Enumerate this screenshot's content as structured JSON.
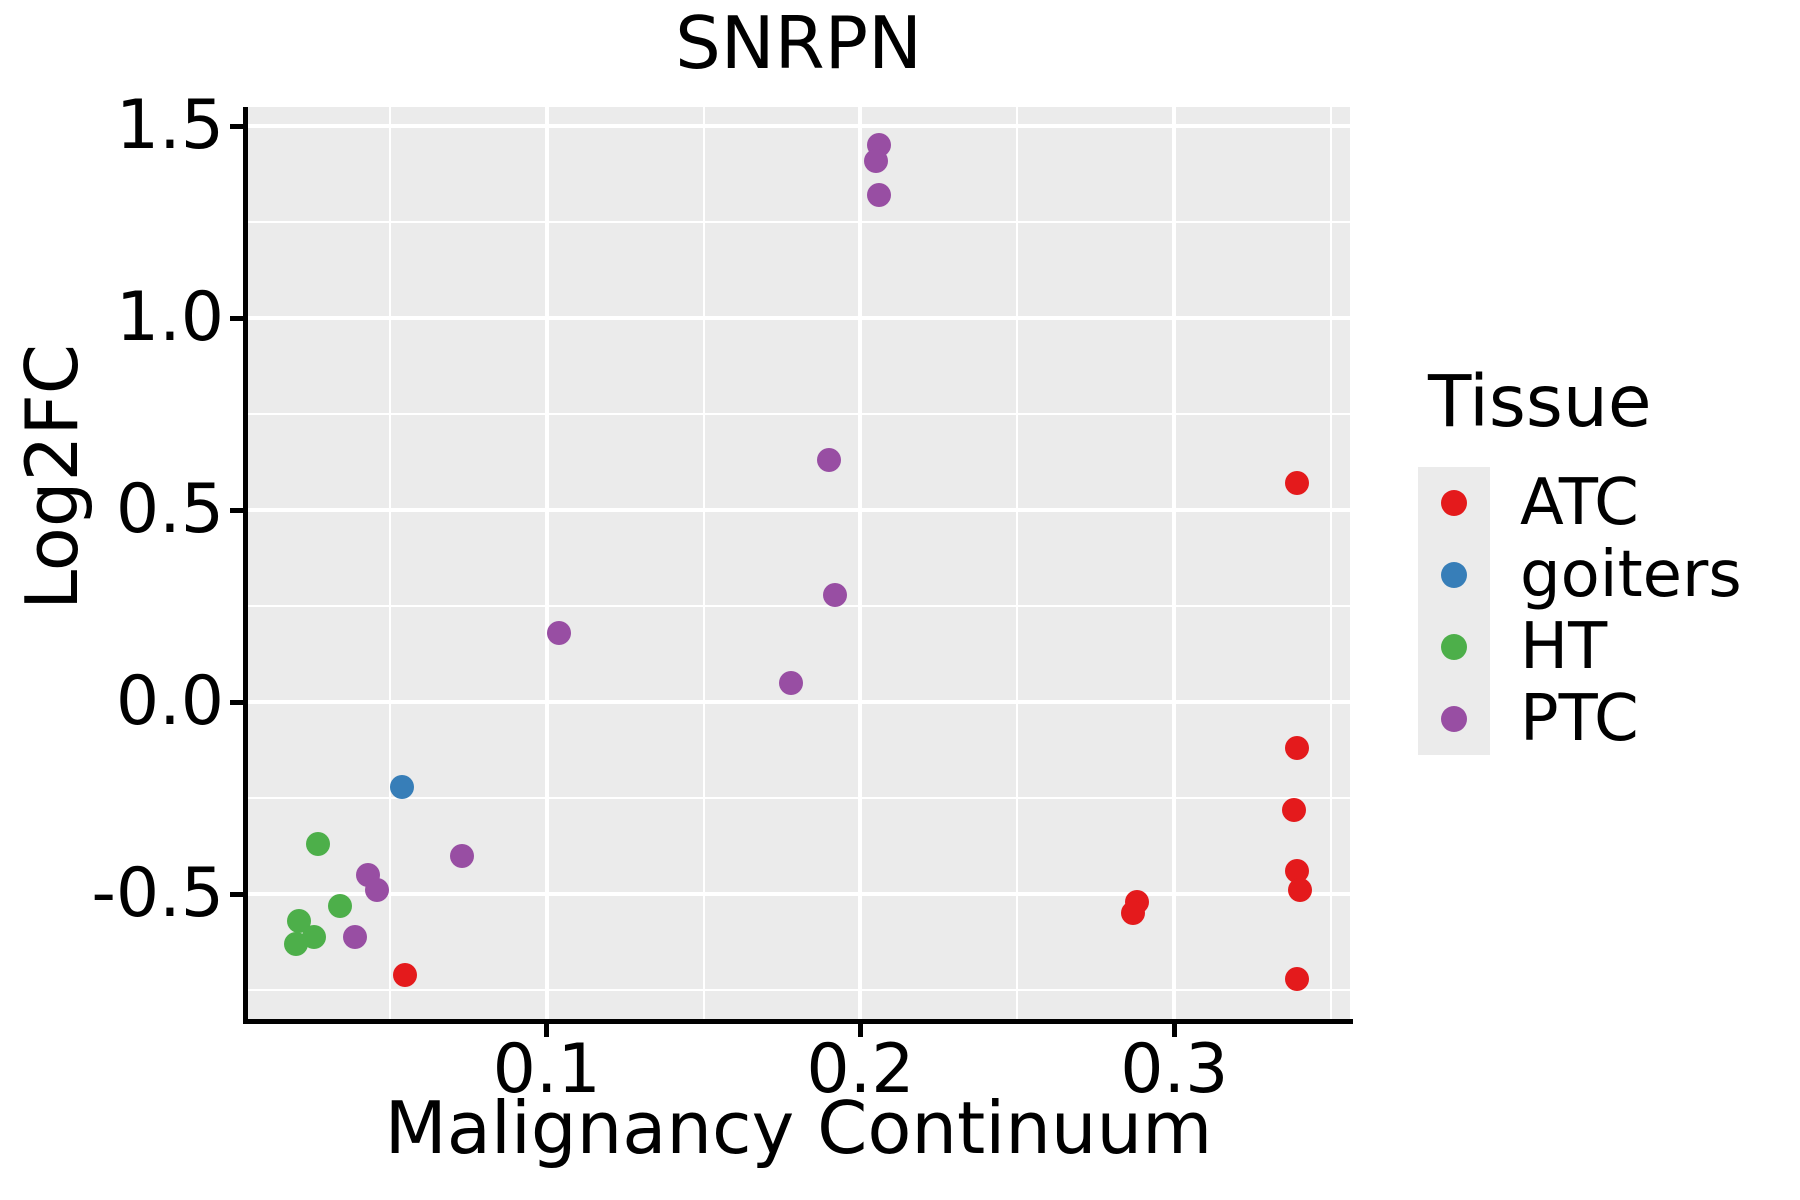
{
  "chart_data": {
    "type": "scatter",
    "title": "SNRPN",
    "xlabel": "Malignancy Continuum",
    "ylabel": "Log2FC",
    "legend_title": "Tissue",
    "legend_position": "right",
    "grid": true,
    "panel_background": "#EBEBEB",
    "grid_color": "#FFFFFF",
    "axis_color": "#000000",
    "xlim": [
      0.0045,
      0.356
    ],
    "ylim": [
      -0.83,
      1.55
    ],
    "x_ticks": [
      {
        "value": 0.1,
        "label": "0.1"
      },
      {
        "value": 0.2,
        "label": "0.2"
      },
      {
        "value": 0.3,
        "label": "0.3"
      }
    ],
    "x_minor": [
      0.05,
      0.15,
      0.25,
      0.35
    ],
    "y_ticks": [
      {
        "value": 1.5,
        "label": "1.5"
      },
      {
        "value": 1.0,
        "label": "1.0"
      },
      {
        "value": 0.5,
        "label": "0.5"
      },
      {
        "value": 0.0,
        "label": "0.0"
      },
      {
        "value": -0.5,
        "label": "-0.5"
      }
    ],
    "y_minor": [
      1.25,
      0.75,
      0.25,
      -0.25,
      -0.75
    ],
    "series": [
      {
        "name": "ATC",
        "color": "#E41A1C",
        "points": [
          [
            0.055,
            -0.71
          ],
          [
            0.288,
            -0.52
          ],
          [
            0.287,
            -0.55
          ],
          [
            0.339,
            0.57
          ],
          [
            0.339,
            -0.12
          ],
          [
            0.338,
            -0.28
          ],
          [
            0.339,
            -0.44
          ],
          [
            0.34,
            -0.49
          ],
          [
            0.339,
            -0.72
          ]
        ]
      },
      {
        "name": "goiters",
        "color": "#377EB8",
        "points": [
          [
            0.054,
            -0.22
          ]
        ]
      },
      {
        "name": "HT",
        "color": "#4DAF4A",
        "points": [
          [
            0.027,
            -0.37
          ],
          [
            0.034,
            -0.53
          ],
          [
            0.021,
            -0.57
          ],
          [
            0.026,
            -0.61
          ],
          [
            0.02,
            -0.63
          ]
        ]
      },
      {
        "name": "PTC",
        "color": "#984EA3",
        "points": [
          [
            0.206,
            1.45
          ],
          [
            0.205,
            1.41
          ],
          [
            0.206,
            1.32
          ],
          [
            0.19,
            0.63
          ],
          [
            0.192,
            0.28
          ],
          [
            0.178,
            0.05
          ],
          [
            0.104,
            0.18
          ],
          [
            0.073,
            -0.4
          ],
          [
            0.043,
            -0.45
          ],
          [
            0.046,
            -0.49
          ],
          [
            0.039,
            -0.61
          ]
        ]
      }
    ]
  }
}
